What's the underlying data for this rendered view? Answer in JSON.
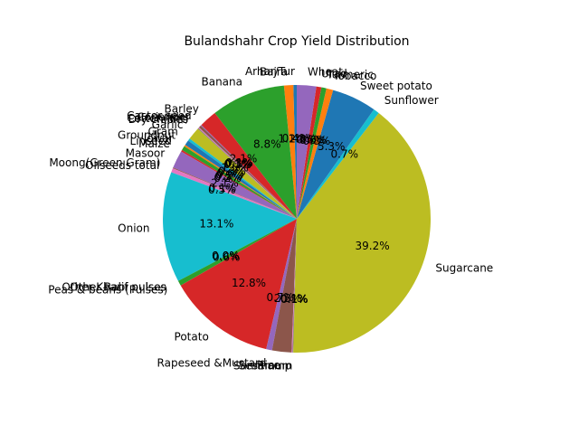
{
  "chart_data": {
    "type": "pie",
    "title": "Bulandshahr Crop Yield Distribution",
    "start_angle_deg": 90,
    "counterclockwise": true,
    "slices": [
      {
        "label": "Arhar/Tur",
        "value": 0.4,
        "pct_label": "0.4%",
        "color": "#1f77b4"
      },
      {
        "label": "Bajra",
        "value": 1.1,
        "pct_label": "1.1%",
        "color": "#ff7f0e"
      },
      {
        "label": "Banana",
        "value": 8.8,
        "pct_label": "8.8%",
        "color": "#2ca02c"
      },
      {
        "label": "Barley",
        "value": 2.1,
        "pct_label": "2.1%",
        "color": "#d62728"
      },
      {
        "label": "Castor seed",
        "value": 0.1,
        "pct_label": "0.1%",
        "color": "#9467bd"
      },
      {
        "label": "Coriander",
        "value": 0.3,
        "pct_label": "0.3%",
        "color": "#8c564b"
      },
      {
        "label": "Cotton(lint)",
        "value": 0.1,
        "pct_label": "0.1%",
        "color": "#e377c2"
      },
      {
        "label": "Dry chillies",
        "value": 0.1,
        "pct_label": "0.1%",
        "color": "#7f7f7f"
      },
      {
        "label": "Garlic",
        "value": 1.5,
        "pct_label": "1.5%",
        "color": "#bcbd22"
      },
      {
        "label": "Gram",
        "value": 0.3,
        "pct_label": "0.3%",
        "color": "#17becf"
      },
      {
        "label": "Groundnut",
        "value": 0.6,
        "pct_label": "0.6%",
        "color": "#1f77b4"
      },
      {
        "label": "Jowar",
        "value": 0.2,
        "pct_label": "0.2%",
        "color": "#ff7f0e"
      },
      {
        "label": "Linseed",
        "value": 0.5,
        "pct_label": "0.5%",
        "color": "#2ca02c"
      },
      {
        "label": "Maize",
        "value": 0.2,
        "pct_label": "0.2%",
        "color": "#d62728"
      },
      {
        "label": "Masoor",
        "value": 2.1,
        "pct_label": "2.1%",
        "color": "#9467bd"
      },
      {
        "label": "Moong(Green Gram)",
        "value": 0.1,
        "pct_label": "0.1%",
        "color": "#8c564b"
      },
      {
        "label": "Oilseeds total",
        "value": 0.5,
        "pct_label": "0.5%",
        "color": "#e377c2"
      },
      {
        "label": "Onion",
        "value": 13.1,
        "pct_label": "13.1%",
        "color": "#17becf"
      },
      {
        "label": "Other Kharif pulses",
        "value": 0.0,
        "pct_label": "0.0%",
        "color": "#7f7f7f"
      },
      {
        "label": "Other Rabi pulses",
        "value": 0.0,
        "pct_label": "0.0%",
        "color": "#bcbd22"
      },
      {
        "label": "Peas & beans (Pulses)",
        "value": 0.6,
        "pct_label": "0.6%",
        "color": "#2ca02c"
      },
      {
        "label": "Potato",
        "value": 12.8,
        "pct_label": "12.8%",
        "color": "#d62728"
      },
      {
        "label": "Rapeseed &Mustard",
        "value": 0.7,
        "pct_label": "0.7%",
        "color": "#9467bd"
      },
      {
        "label": "Rice",
        "value": 2.3,
        "pct_label": "2.3%",
        "color": "#8c564b"
      },
      {
        "label": "Sannhamp",
        "value": 0.1,
        "pct_label": "0.1%",
        "color": "#e377c2"
      },
      {
        "label": "Sesamum",
        "value": 0.1,
        "pct_label": "0.1%",
        "color": "#7f7f7f"
      },
      {
        "label": "Sugarcane",
        "value": 39.2,
        "pct_label": "39.2%",
        "color": "#bcbd22"
      },
      {
        "label": "Sunflower",
        "value": 0.7,
        "pct_label": "0.7%",
        "color": "#17becf"
      },
      {
        "label": "Sweet potato",
        "value": 5.3,
        "pct_label": "5.3%",
        "color": "#1f77b4"
      },
      {
        "label": "Tobacco",
        "value": 0.8,
        "pct_label": "0.8%",
        "color": "#ff7f0e"
      },
      {
        "label": "Turmeric",
        "value": 0.6,
        "pct_label": "0.6%",
        "color": "#2ca02c"
      },
      {
        "label": "Urad",
        "value": 0.6,
        "pct_label": "0.6%",
        "color": "#d62728"
      },
      {
        "label": "Wheat",
        "value": 2.3,
        "pct_label": "2.3%",
        "color": "#9467bd"
      }
    ]
  }
}
